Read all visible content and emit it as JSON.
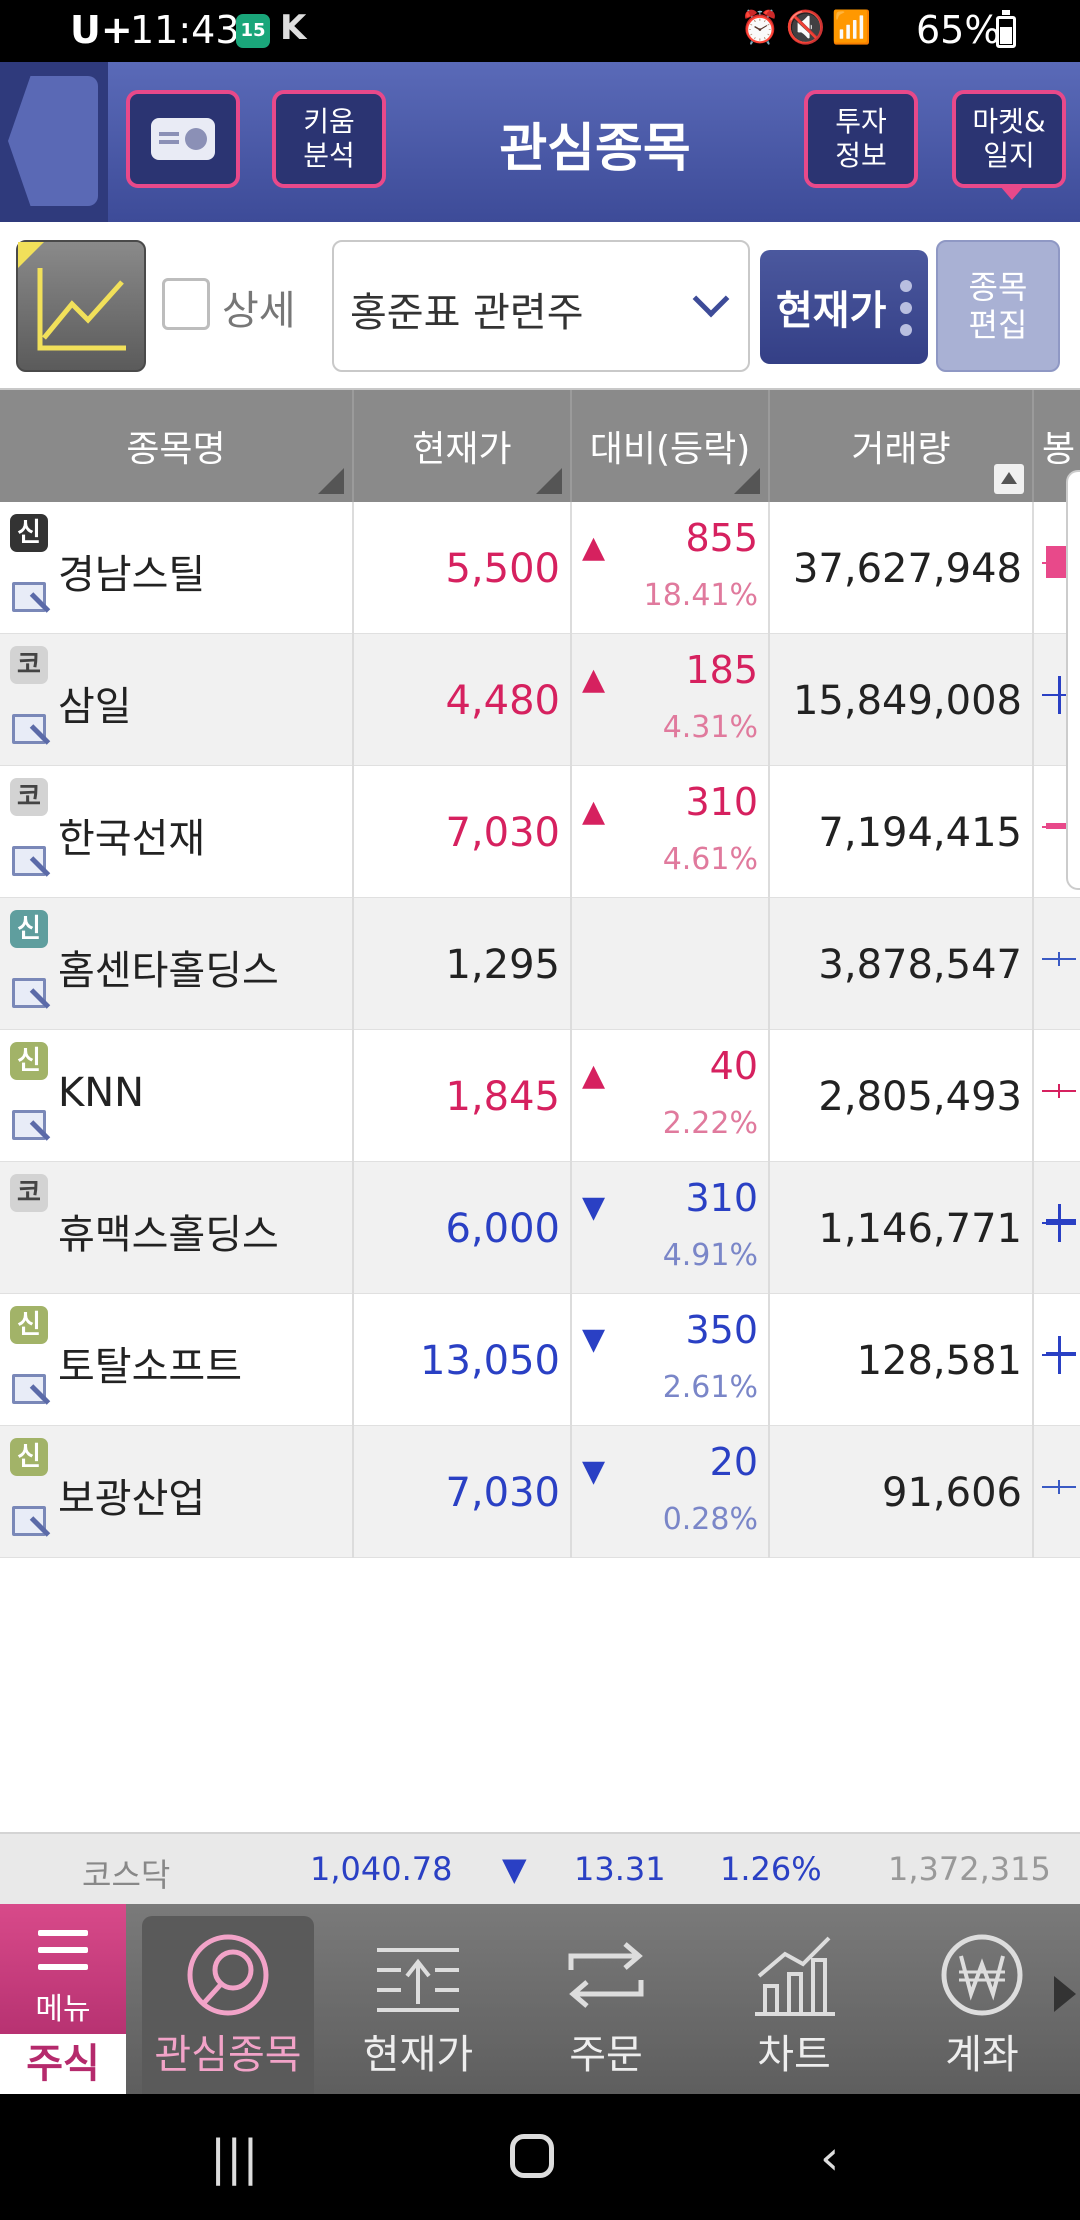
{
  "status_bar": {
    "carrier": "U+",
    "time": "11:43",
    "calendar_day": "15",
    "app_badge": "K",
    "battery": "65%"
  },
  "header": {
    "title": "관심종목",
    "kiwoom_label": "키움\n분석",
    "kiwoom_line1": "키움",
    "kiwoom_line2": "분석",
    "invest_line1": "투자",
    "invest_line2": "정보",
    "market_line1": "마켓&",
    "market_line2": "일지"
  },
  "toolbar": {
    "detail_label": "상세",
    "group_value": "홍준표 관련주",
    "price_mode": "현재가",
    "edit_line1": "종목",
    "edit_line2": "편집"
  },
  "table": {
    "columns": [
      "종목명",
      "현재가",
      "대비(등락)",
      "거래량",
      "봉"
    ],
    "rows": [
      {
        "market": "신",
        "badge_style": "dark",
        "name": "경남스틸",
        "price": "5,500",
        "dir": "up",
        "arrow": "▲",
        "change": "855",
        "pct": "18.41%",
        "volume": "37,627,948",
        "memo": true
      },
      {
        "market": "코",
        "badge_style": "gray",
        "name": "삼일",
        "price": "4,480",
        "dir": "up",
        "arrow": "▲",
        "change": "185",
        "pct": "4.31%",
        "volume": "15,849,008",
        "memo": true
      },
      {
        "market": "코",
        "badge_style": "gray",
        "name": "한국선재",
        "price": "7,030",
        "dir": "up",
        "arrow": "▲",
        "change": "310",
        "pct": "4.61%",
        "volume": "7,194,415",
        "memo": true
      },
      {
        "market": "신",
        "badge_style": "teal",
        "name": "홈센타홀딩스",
        "price": "1,295",
        "dir": "flat",
        "arrow": "",
        "change": "",
        "pct": "",
        "volume": "3,878,547",
        "memo": true
      },
      {
        "market": "신",
        "badge_style": "olive",
        "name": "KNN",
        "price": "1,845",
        "dir": "up",
        "arrow": "▲",
        "change": "40",
        "pct": "2.22%",
        "volume": "2,805,493",
        "memo": true
      },
      {
        "market": "코",
        "badge_style": "gray",
        "name": "휴맥스홀딩스",
        "price": "6,000",
        "dir": "down",
        "arrow": "▼",
        "change": "310",
        "pct": "4.91%",
        "volume": "1,146,771",
        "memo": false
      },
      {
        "market": "신",
        "badge_style": "olive",
        "name": "토탈소프트",
        "price": "13,050",
        "dir": "down",
        "arrow": "▼",
        "change": "350",
        "pct": "2.61%",
        "volume": "128,581",
        "memo": true
      },
      {
        "market": "신",
        "badge_style": "olive",
        "name": "보광산업",
        "price": "7,030",
        "dir": "down",
        "arrow": "▼",
        "change": "20",
        "pct": "0.28%",
        "volume": "91,606",
        "memo": true
      }
    ]
  },
  "index_bar": {
    "name": "코스닥",
    "value": "1,040.78",
    "arrow": "▼",
    "change": "13.31",
    "pct": "1.26%",
    "volume": "1,372,315"
  },
  "bottom_nav": {
    "menu_label": "메뉴",
    "stock_label": "주식",
    "items": [
      "관심종목",
      "현재가",
      "주문",
      "차트",
      "계좌"
    ]
  },
  "colors": {
    "up": "#d6215f",
    "down": "#2a40c4",
    "header": "#3d4b98",
    "accent": "#e8498a"
  }
}
